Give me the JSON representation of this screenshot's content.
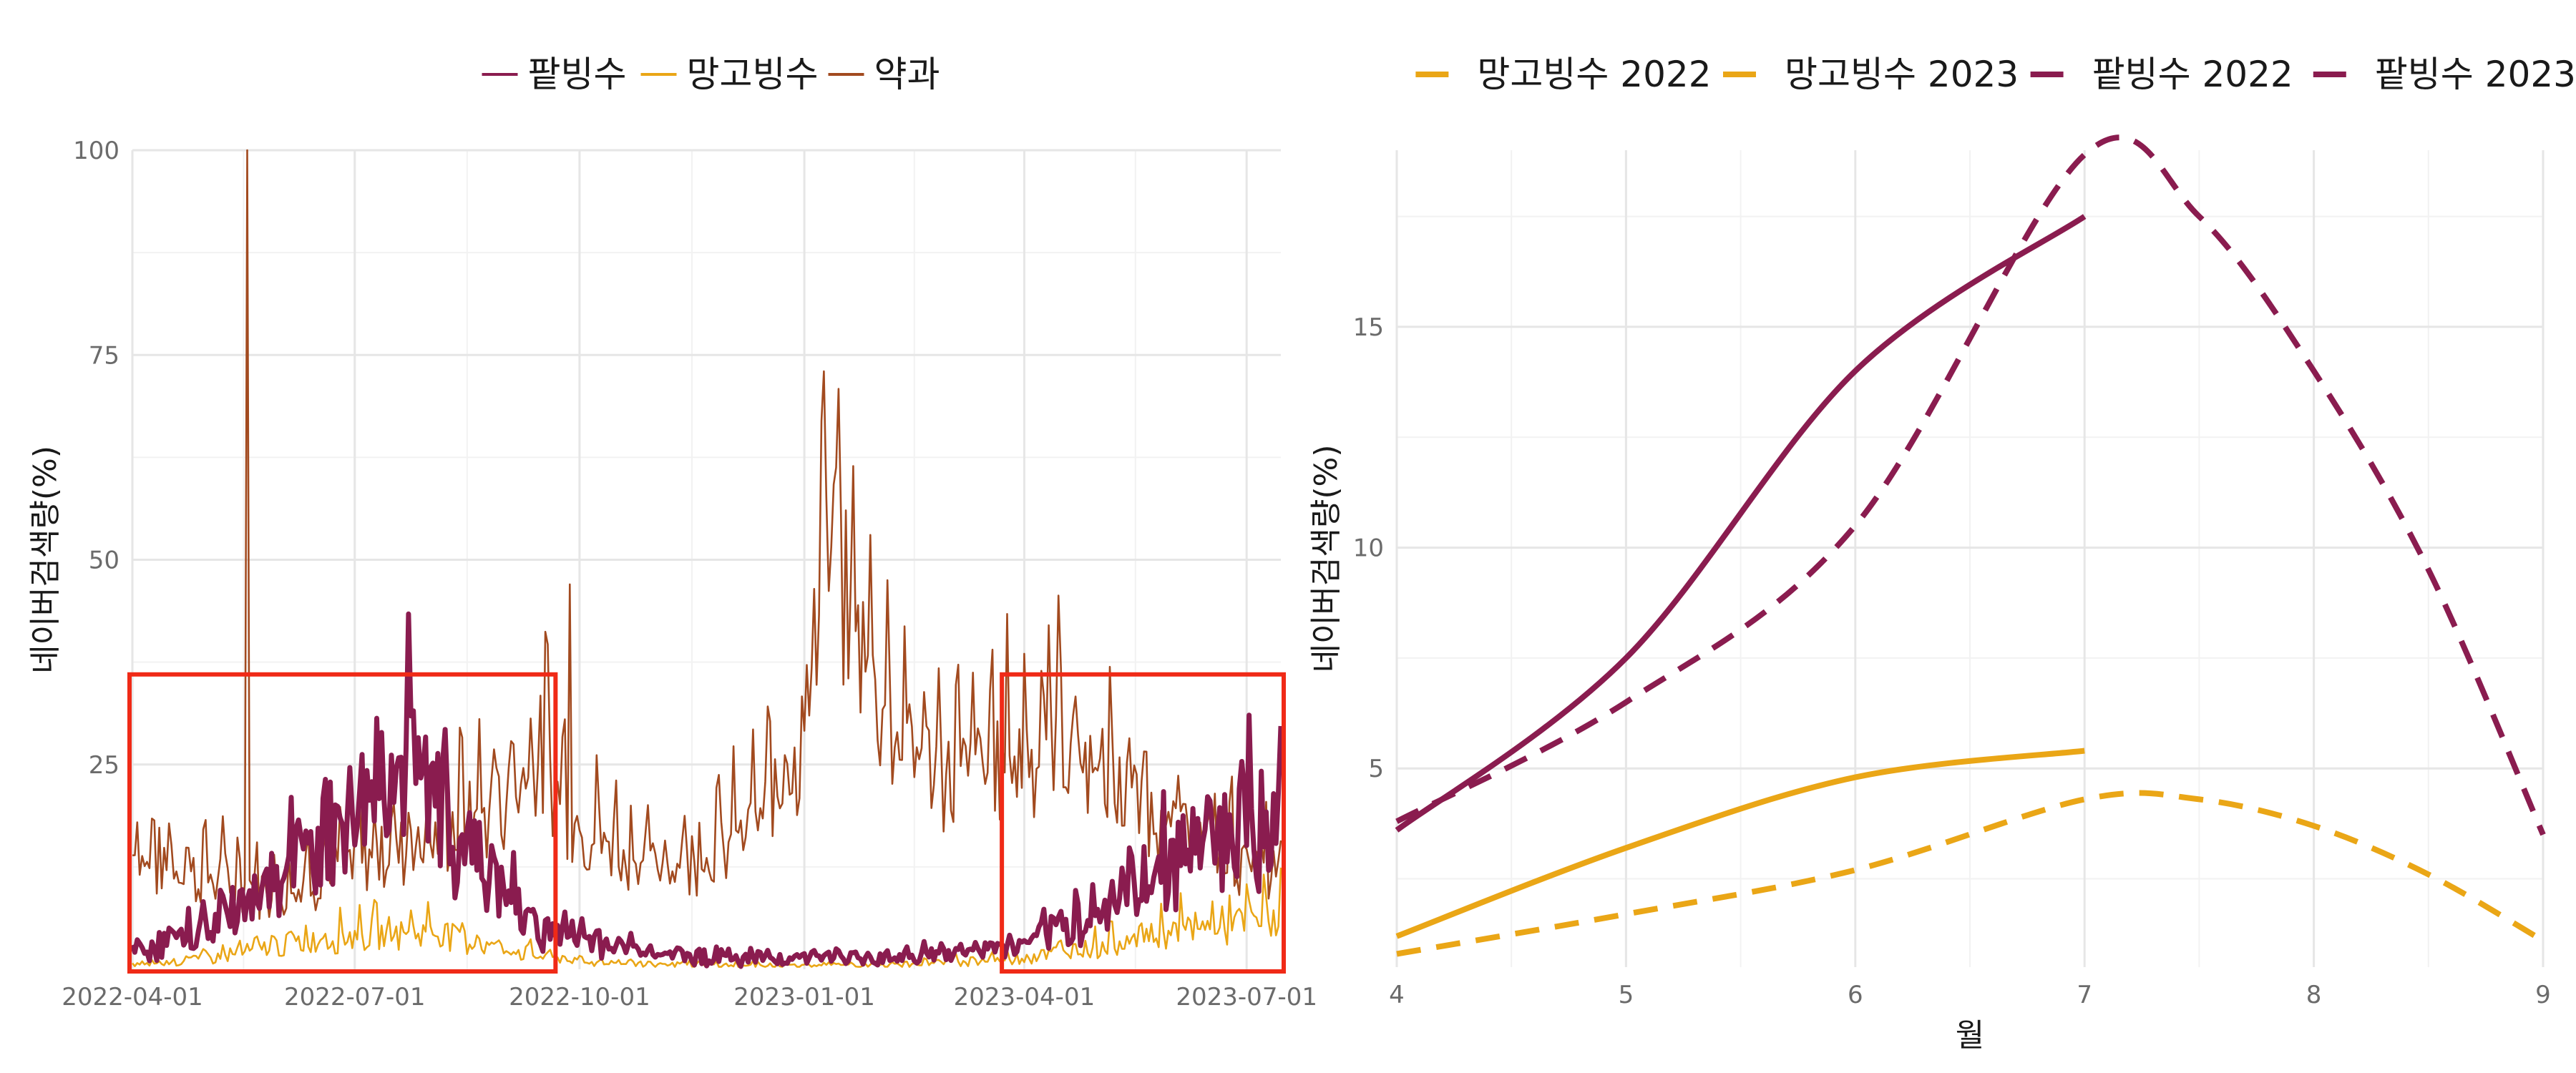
{
  "chart_data": [
    {
      "type": "line",
      "ylabel": "네이버검색량(%)",
      "xlabel": "",
      "xlim": [
        "2022-04-01",
        "2023-07-15"
      ],
      "ylim": [
        0,
        100
      ],
      "x_ticks": [
        "2022-04-01",
        "2022-07-01",
        "2022-10-01",
        "2023-01-01",
        "2023-04-01",
        "2023-07-01"
      ],
      "y_ticks": [
        25,
        50,
        75,
        100
      ],
      "grid": true,
      "legend_position": "top",
      "colors": {
        "팥빙수": "#8a1c4f",
        "망고빙수": "#eaa616",
        "약과": "#a24a1f",
        "highlight": "#f02a17"
      },
      "series": [
        {
          "name": "팥빙수",
          "points": [
            [
              "2022-04-01",
              2
            ],
            [
              "2022-05-01",
              5
            ],
            [
              "2022-06-01",
              12
            ],
            [
              "2022-07-01",
              20
            ],
            [
              "2022-07-15",
              27
            ],
            [
              "2022-08-01",
              22
            ],
            [
              "2022-08-15",
              16
            ],
            [
              "2022-09-01",
              9
            ],
            [
              "2022-09-15",
              5
            ],
            [
              "2022-10-01",
              4
            ],
            [
              "2022-11-01",
              2
            ],
            [
              "2022-12-01",
              1.5
            ],
            [
              "2023-01-01",
              1.5
            ],
            [
              "2023-02-01",
              1.5
            ],
            [
              "2023-03-01",
              2
            ],
            [
              "2023-04-01",
              3
            ],
            [
              "2023-05-01",
              7
            ],
            [
              "2023-06-01",
              14
            ],
            [
              "2023-07-01",
              20
            ],
            [
              "2023-07-15",
              18
            ]
          ]
        },
        {
          "name": "망고빙수",
          "points": [
            [
              "2022-04-01",
              0.5
            ],
            [
              "2022-05-01",
              1.5
            ],
            [
              "2022-06-01",
              3
            ],
            [
              "2022-07-01",
              4.5
            ],
            [
              "2022-08-01",
              5
            ],
            [
              "2022-09-01",
              2.5
            ],
            [
              "2022-10-01",
              1
            ],
            [
              "2022-12-01",
              0.5
            ],
            [
              "2023-02-01",
              0.5
            ],
            [
              "2023-04-01",
              1.5
            ],
            [
              "2023-05-01",
              3
            ],
            [
              "2023-06-01",
              5
            ],
            [
              "2023-07-01",
              6
            ],
            [
              "2023-07-15",
              7
            ]
          ]
        },
        {
          "name": "약과",
          "points": [
            [
              "2022-04-01",
              15
            ],
            [
              "2022-05-01",
              12
            ],
            [
              "2022-06-01",
              10
            ],
            [
              "2022-06-15",
              12
            ],
            [
              "2022-07-01",
              14
            ],
            [
              "2022-08-01",
              17
            ],
            [
              "2022-09-01",
              22
            ],
            [
              "2022-09-15",
              28
            ],
            [
              "2022-10-01",
              18
            ],
            [
              "2022-11-01",
              13
            ],
            [
              "2022-12-01",
              16
            ],
            [
              "2022-12-15",
              20
            ],
            [
              "2023-01-01",
              30
            ],
            [
              "2023-01-10",
              55
            ],
            [
              "2023-01-20",
              45
            ],
            [
              "2023-02-01",
              35
            ],
            [
              "2023-02-15",
              28
            ],
            [
              "2023-03-01",
              25
            ],
            [
              "2023-04-01",
              28
            ],
            [
              "2023-04-15",
              30
            ],
            [
              "2023-05-01",
              25
            ],
            [
              "2023-06-01",
              18
            ],
            [
              "2023-07-01",
              14
            ],
            [
              "2023-07-15",
              12
            ]
          ]
        }
      ],
      "spikes": [
        {
          "series": "약과",
          "x": "2022-05-18",
          "y": 100
        },
        {
          "series": "약과",
          "x": "2022-09-27",
          "y": 47
        },
        {
          "series": "약과",
          "x": "2023-01-09",
          "y": 73
        },
        {
          "series": "약과",
          "x": "2023-04-11",
          "y": 42
        }
      ],
      "highlight_boxes": [
        {
          "x_start": "2022-04-01",
          "x_end": "2022-09-20",
          "y_start": 0,
          "y_end": 36
        },
        {
          "x_start": "2023-03-24",
          "x_end": "2023-07-15",
          "y_start": 0,
          "y_end": 36
        }
      ]
    },
    {
      "type": "line",
      "xlabel": "월",
      "ylabel": "네이버검색량(%)",
      "xlim": [
        4,
        9
      ],
      "ylim": [
        0.5,
        19
      ],
      "x_ticks": [
        4,
        5,
        6,
        7,
        8,
        9
      ],
      "y_ticks": [
        5,
        10,
        15
      ],
      "grid": true,
      "legend_position": "top",
      "series": [
        {
          "name": "망고빙수 2022",
          "color": "#eaa616",
          "dashed": true,
          "x": [
            4,
            5,
            6,
            7,
            7.5,
            8,
            8.5,
            9
          ],
          "y": [
            0.8,
            1.7,
            2.7,
            4.3,
            4.3,
            3.7,
            2.6,
            1.1
          ]
        },
        {
          "name": "망고빙수 2023",
          "color": "#eaa616",
          "dashed": false,
          "x": [
            4,
            5,
            6,
            7
          ],
          "y": [
            1.2,
            3.2,
            4.8,
            5.4
          ]
        },
        {
          "name": "팥빙수 2022",
          "color": "#8a1c4f",
          "dashed": true,
          "x": [
            4,
            5,
            6,
            7,
            7.5,
            8,
            8.5,
            9
          ],
          "y": [
            3.8,
            6.5,
            10.5,
            18.9,
            17.5,
            14.0,
            9.5,
            3.5
          ]
        },
        {
          "name": "팥빙수 2023",
          "color": "#8a1c4f",
          "dashed": false,
          "x": [
            4,
            5,
            6,
            7
          ],
          "y": [
            3.6,
            7.5,
            14.0,
            17.5
          ]
        }
      ]
    }
  ]
}
